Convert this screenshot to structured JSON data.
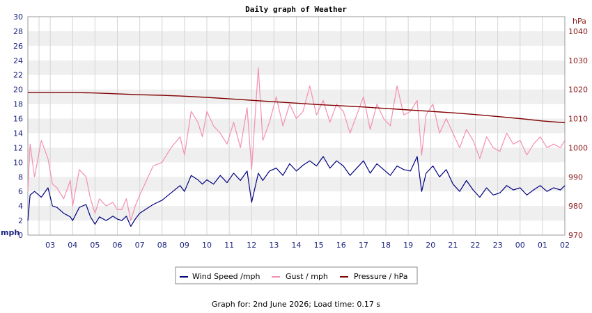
{
  "footer": "Graph for: 2nd June 2026; Load time: 0.17 s",
  "chart_data": {
    "type": "line",
    "title": "Daily graph of Weather",
    "y_left": {
      "unit_label": "mph",
      "range": [
        0,
        30
      ],
      "ticks": [
        "0",
        "2",
        "4",
        "6",
        "8",
        "10",
        "12",
        "14",
        "16",
        "18",
        "20",
        "22",
        "24",
        "26",
        "28",
        "30"
      ]
    },
    "y_right": {
      "unit_label": "hPa",
      "range": [
        970,
        1045
      ],
      "ticks": [
        "970",
        "980",
        "990",
        "1000",
        "1010",
        "1020",
        "1030",
        "1040"
      ]
    },
    "x_ticks": [
      "03",
      "04",
      "05",
      "06",
      "07",
      "08",
      "09",
      "10",
      "11",
      "12",
      "13",
      "14",
      "15",
      "16",
      "17",
      "18",
      "19",
      "20",
      "21",
      "22",
      "23",
      "00",
      "01",
      "02"
    ],
    "x_range": [
      2,
      26
    ],
    "grid": true,
    "legend_position": "bottom-center",
    "colors": {
      "wind": "#000080",
      "gust": "#f48fb1",
      "pressure": "#800000",
      "axis_left": "#1a237e",
      "axis_right": "#8b1a1a",
      "band": "#efefef"
    },
    "series": [
      {
        "name": "Wind Speed /mph",
        "axis": "left",
        "color": "#000080",
        "x": [
          2.0,
          2.1,
          2.3,
          2.6,
          2.9,
          3.1,
          3.3,
          3.6,
          3.9,
          4.0,
          4.3,
          4.6,
          4.8,
          5.0,
          5.2,
          5.5,
          5.8,
          6.0,
          6.2,
          6.4,
          6.6,
          6.8,
          7.0,
          7.3,
          7.6,
          8.0,
          8.4,
          8.8,
          9.0,
          9.3,
          9.6,
          9.8,
          10.0,
          10.3,
          10.6,
          10.9,
          11.2,
          11.5,
          11.8,
          12.0,
          12.3,
          12.5,
          12.8,
          13.1,
          13.4,
          13.7,
          14.0,
          14.3,
          14.6,
          14.9,
          15.2,
          15.5,
          15.8,
          16.1,
          16.4,
          16.7,
          17.0,
          17.3,
          17.6,
          17.9,
          18.2,
          18.5,
          18.8,
          19.1,
          19.4,
          19.6,
          19.8,
          20.1,
          20.4,
          20.7,
          21.0,
          21.3,
          21.6,
          21.9,
          22.2,
          22.5,
          22.8,
          23.1,
          23.4,
          23.7,
          24.0,
          24.3,
          24.6,
          24.9,
          25.2,
          25.5,
          25.8,
          26.0
        ],
        "values": [
          2.0,
          5.5,
          6.0,
          5.2,
          6.5,
          4.0,
          3.8,
          3.0,
          2.5,
          2.0,
          3.8,
          4.2,
          2.5,
          1.5,
          2.5,
          2.0,
          2.6,
          2.2,
          2.0,
          2.6,
          1.2,
          2.2,
          3.0,
          3.6,
          4.2,
          4.8,
          5.8,
          6.8,
          6.0,
          8.2,
          7.6,
          7.0,
          7.6,
          7.0,
          8.2,
          7.2,
          8.5,
          7.5,
          8.8,
          4.5,
          8.5,
          7.5,
          8.8,
          9.2,
          8.2,
          9.8,
          8.8,
          9.6,
          10.2,
          9.5,
          10.8,
          9.2,
          10.2,
          9.5,
          8.2,
          9.2,
          10.2,
          8.5,
          9.8,
          9.0,
          8.2,
          9.5,
          9.0,
          8.8,
          10.8,
          6.0,
          8.5,
          9.5,
          8.0,
          9.0,
          7.0,
          6.0,
          7.5,
          6.2,
          5.2,
          6.5,
          5.5,
          5.8,
          6.8,
          6.2,
          6.5,
          5.5,
          6.2,
          6.8,
          6.0,
          6.5,
          6.2,
          6.8
        ]
      },
      {
        "name": "Gust / mph",
        "axis": "left",
        "color": "#f48fb1",
        "x": [
          2.0,
          2.1,
          2.3,
          2.6,
          2.9,
          3.1,
          3.3,
          3.6,
          3.9,
          4.0,
          4.3,
          4.6,
          4.8,
          5.0,
          5.2,
          5.5,
          5.8,
          6.0,
          6.2,
          6.4,
          6.6,
          6.8,
          7.0,
          7.3,
          7.6,
          8.0,
          8.4,
          8.8,
          9.0,
          9.3,
          9.6,
          9.8,
          10.0,
          10.3,
          10.6,
          10.9,
          11.2,
          11.5,
          11.8,
          12.0,
          12.3,
          12.5,
          12.8,
          13.1,
          13.4,
          13.7,
          14.0,
          14.3,
          14.6,
          14.9,
          15.2,
          15.5,
          15.8,
          16.1,
          16.4,
          16.7,
          17.0,
          17.3,
          17.6,
          17.9,
          18.2,
          18.5,
          18.8,
          19.1,
          19.4,
          19.6,
          19.8,
          20.1,
          20.4,
          20.7,
          21.0,
          21.3,
          21.6,
          21.9,
          22.2,
          22.5,
          22.8,
          23.1,
          23.4,
          23.7,
          24.0,
          24.3,
          24.6,
          24.9,
          25.2,
          25.5,
          25.8,
          26.0
        ],
        "values": [
          6.0,
          12.5,
          8.0,
          13.0,
          10.5,
          7.0,
          6.5,
          5.0,
          7.5,
          4.0,
          9.0,
          8.0,
          5.0,
          3.0,
          5.0,
          4.0,
          4.5,
          3.5,
          3.5,
          5.0,
          2.0,
          4.0,
          5.5,
          7.5,
          9.5,
          10.0,
          12.0,
          13.5,
          11.0,
          17.0,
          15.5,
          13.5,
          17.0,
          15.0,
          14.0,
          12.5,
          15.5,
          12.0,
          17.5,
          9.0,
          23.0,
          13.0,
          15.5,
          19.0,
          15.0,
          18.0,
          16.0,
          17.0,
          20.5,
          16.5,
          18.5,
          15.5,
          18.0,
          17.0,
          14.0,
          16.5,
          19.0,
          14.5,
          18.0,
          16.0,
          15.0,
          20.5,
          16.5,
          17.0,
          18.5,
          11.0,
          16.5,
          18.0,
          14.0,
          16.0,
          14.0,
          12.0,
          14.5,
          13.0,
          10.5,
          13.5,
          12.0,
          11.5,
          14.0,
          12.5,
          13.0,
          11.0,
          12.5,
          13.5,
          12.0,
          12.5,
          12.0,
          13.0
        ]
      },
      {
        "name": "Pressure / hPa",
        "axis": "right",
        "color": "#800000",
        "x": [
          2.0,
          3.0,
          4.0,
          5.0,
          6.0,
          7.0,
          8.0,
          9.0,
          10.0,
          11.0,
          12.0,
          13.0,
          14.0,
          15.0,
          16.0,
          17.0,
          18.0,
          19.0,
          20.0,
          21.0,
          22.0,
          23.0,
          24.0,
          25.0,
          26.0
        ],
        "values": [
          1019.0,
          1019.0,
          1019.0,
          1018.8,
          1018.5,
          1018.2,
          1018.0,
          1017.7,
          1017.3,
          1016.8,
          1016.3,
          1015.8,
          1015.3,
          1014.8,
          1014.4,
          1014.0,
          1013.5,
          1013.0,
          1012.5,
          1012.0,
          1011.4,
          1010.7,
          1010.0,
          1009.2,
          1008.6
        ]
      }
    ]
  }
}
